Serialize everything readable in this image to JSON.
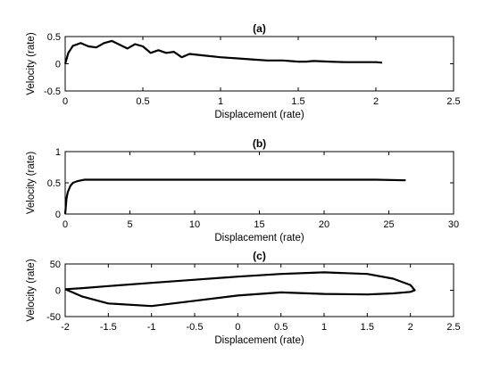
{
  "chart_data": [
    {
      "type": "line",
      "title": "(a)",
      "xlabel": "Displacement (rate)",
      "ylabel": "Velocity (rate)",
      "xlim": [
        0,
        2.5
      ],
      "ylim": [
        -0.5,
        0.5
      ],
      "xticks": [
        "0",
        "0.5",
        "1",
        "1.5",
        "2",
        "2.5"
      ],
      "yticks": [
        "-0.5",
        "0",
        "0.5"
      ],
      "grid": false,
      "color": "#000000",
      "series": [
        {
          "x": [
            0.0,
            0.02,
            0.05,
            0.1,
            0.15,
            0.2,
            0.25,
            0.3,
            0.35,
            0.4,
            0.45,
            0.5,
            0.55,
            0.6,
            0.65,
            0.7,
            0.75,
            0.8,
            0.9,
            1.0,
            1.1,
            1.2,
            1.3,
            1.4,
            1.5,
            1.55,
            1.6,
            1.7,
            1.8,
            1.9,
            2.0,
            2.04
          ],
          "y": [
            0.0,
            0.2,
            0.33,
            0.38,
            0.32,
            0.3,
            0.38,
            0.42,
            0.35,
            0.28,
            0.36,
            0.32,
            0.2,
            0.25,
            0.2,
            0.22,
            0.12,
            0.18,
            0.15,
            0.12,
            0.1,
            0.08,
            0.06,
            0.06,
            0.04,
            0.04,
            0.05,
            0.04,
            0.03,
            0.03,
            0.03,
            0.02
          ]
        }
      ]
    },
    {
      "type": "line",
      "title": "(b)",
      "xlabel": "Displacement (rate)",
      "ylabel": "Velocity (rate)",
      "xlim": [
        0,
        30
      ],
      "ylim": [
        0,
        1
      ],
      "xticks": [
        "0",
        "5",
        "10",
        "15",
        "20",
        "25",
        "30"
      ],
      "yticks": [
        "0",
        "0.5",
        "1"
      ],
      "grid": false,
      "color": "#000000",
      "series": [
        {
          "x": [
            0,
            0.1,
            0.2,
            0.4,
            0.6,
            1.0,
            1.5,
            2,
            3,
            5,
            8,
            10,
            12,
            15,
            18,
            20,
            22,
            24,
            26.3
          ],
          "y": [
            0,
            0.25,
            0.35,
            0.45,
            0.5,
            0.53,
            0.55,
            0.55,
            0.55,
            0.55,
            0.55,
            0.55,
            0.55,
            0.55,
            0.55,
            0.55,
            0.55,
            0.55,
            0.54
          ]
        }
      ]
    },
    {
      "type": "line",
      "title": "(c)",
      "xlabel": "Displacement (rate)",
      "ylabel": "Velocity (rate)",
      "xlim": [
        -2,
        2.5
      ],
      "ylim": [
        -50,
        50
      ],
      "xticks": [
        "-2",
        "-1.5",
        "-1",
        "-0.5",
        "0",
        "0.5",
        "1",
        "1.5",
        "2",
        "2.5"
      ],
      "yticks": [
        "-50",
        "0",
        "50"
      ],
      "grid": false,
      "color": "#000000",
      "series": [
        {
          "x": [
            -2.0,
            -1.8,
            -1.5,
            -1.0,
            -0.5,
            0.0,
            0.5,
            1.0,
            1.5,
            1.8,
            2.0,
            2.05,
            2.0,
            1.8,
            1.5,
            1.0,
            0.5,
            0.0,
            -0.5,
            -1.0,
            -1.5,
            -1.8,
            -2.0
          ],
          "y": [
            2,
            4,
            8,
            14,
            20,
            26,
            31,
            34,
            31,
            22,
            10,
            0,
            -3,
            -6,
            -8,
            -7,
            -4,
            -10,
            -20,
            -30,
            -25,
            -12,
            2
          ]
        }
      ]
    }
  ]
}
